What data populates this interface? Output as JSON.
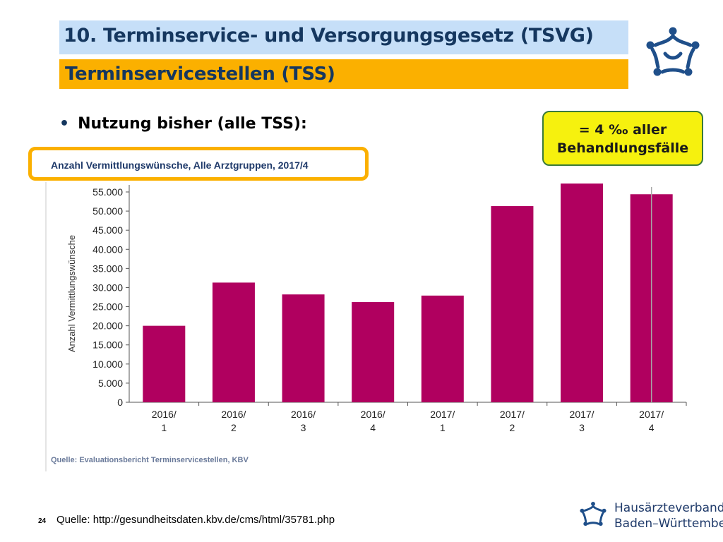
{
  "header": {
    "title": "10. Terminservice- und Versorgungsgesetz (TSVG)",
    "subtitle": "Terminservicestellen (TSS)"
  },
  "bullet": {
    "text": "Nutzung bisher (alle TSS):"
  },
  "callout": {
    "line1": "= 4 ‰ aller",
    "line2": "Behandlungsfälle"
  },
  "chart_caption": "Anzahl Vermittlungswünsche, Alle Arztgruppen, 2017/4",
  "chart_source": "Quelle: Evaluationsbericht Terminservicestellen, KBV",
  "footer": {
    "page_number": "24",
    "source": "Quelle: http://gesundheitsdaten.kbv.de/cms/html/35781.php"
  },
  "brand": {
    "line1": "Hausärzteverband",
    "line2": "Baden–Württemberg"
  },
  "colors": {
    "title_bg": "#c6dff8",
    "subtitle_bg": "#fbb000",
    "title_text": "#15375f",
    "bar": "#b0005f",
    "callout_bg": "#f6f10e",
    "logo_blue": "#1f4f8a"
  },
  "chart_data": {
    "type": "bar",
    "title": "Anzahl Vermittlungswünsche, Alle Arztgruppen, 2017/4",
    "ylabel": "Anzahl Vermittlungswünsche",
    "xlabel": "",
    "categories": [
      [
        "2016/",
        "1"
      ],
      [
        "2016/",
        "2"
      ],
      [
        "2016/",
        "3"
      ],
      [
        "2016/",
        "4"
      ],
      [
        "2017/",
        "1"
      ],
      [
        "2017/",
        "2"
      ],
      [
        "2017/",
        "3"
      ],
      [
        "2017/",
        "4"
      ]
    ],
    "values": [
      20000,
      31300,
      28200,
      26200,
      27900,
      51300,
      57200,
      54400
    ],
    "ylim": [
      0,
      55000
    ],
    "yticks": [
      {
        "value": 0,
        "label": "0"
      },
      {
        "value": 5000,
        "label": "5.000"
      },
      {
        "value": 10000,
        "label": "10.000"
      },
      {
        "value": 15000,
        "label": "15.000"
      },
      {
        "value": 20000,
        "label": "20.000"
      },
      {
        "value": 25000,
        "label": "25.000"
      },
      {
        "value": 30000,
        "label": "30.000"
      },
      {
        "value": 35000,
        "label": "35.000"
      },
      {
        "value": 40000,
        "label": "40.000"
      },
      {
        "value": 45000,
        "label": "45.000"
      },
      {
        "value": 50000,
        "label": "50.000"
      },
      {
        "value": 55000,
        "label": "55.000"
      }
    ],
    "grid": false
  }
}
